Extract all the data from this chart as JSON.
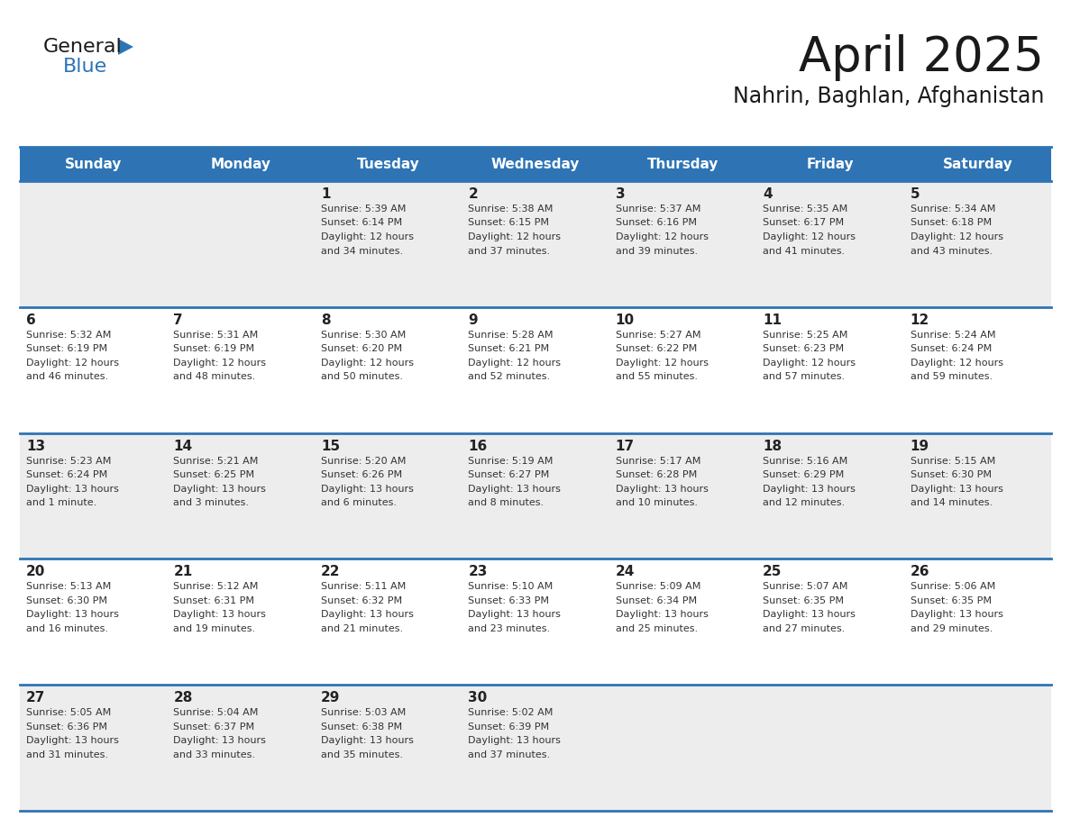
{
  "title": "April 2025",
  "subtitle": "Nahrin, Baghlan, Afghanistan",
  "header_color": "#2E74B5",
  "header_text_color": "#FFFFFF",
  "cell_bg_even": "#EDEDED",
  "cell_bg_odd": "#FFFFFF",
  "border_color": "#2E74B5",
  "text_color": "#333333",
  "day_num_color": "#222222",
  "day_headers": [
    "Sunday",
    "Monday",
    "Tuesday",
    "Wednesday",
    "Thursday",
    "Friday",
    "Saturday"
  ],
  "weeks": [
    [
      {
        "day": "",
        "sunrise": "",
        "sunset": "",
        "daylight": ""
      },
      {
        "day": "",
        "sunrise": "",
        "sunset": "",
        "daylight": ""
      },
      {
        "day": "1",
        "sunrise": "Sunrise: 5:39 AM",
        "sunset": "Sunset: 6:14 PM",
        "daylight": "Daylight: 12 hours\nand 34 minutes."
      },
      {
        "day": "2",
        "sunrise": "Sunrise: 5:38 AM",
        "sunset": "Sunset: 6:15 PM",
        "daylight": "Daylight: 12 hours\nand 37 minutes."
      },
      {
        "day": "3",
        "sunrise": "Sunrise: 5:37 AM",
        "sunset": "Sunset: 6:16 PM",
        "daylight": "Daylight: 12 hours\nand 39 minutes."
      },
      {
        "day": "4",
        "sunrise": "Sunrise: 5:35 AM",
        "sunset": "Sunset: 6:17 PM",
        "daylight": "Daylight: 12 hours\nand 41 minutes."
      },
      {
        "day": "5",
        "sunrise": "Sunrise: 5:34 AM",
        "sunset": "Sunset: 6:18 PM",
        "daylight": "Daylight: 12 hours\nand 43 minutes."
      }
    ],
    [
      {
        "day": "6",
        "sunrise": "Sunrise: 5:32 AM",
        "sunset": "Sunset: 6:19 PM",
        "daylight": "Daylight: 12 hours\nand 46 minutes."
      },
      {
        "day": "7",
        "sunrise": "Sunrise: 5:31 AM",
        "sunset": "Sunset: 6:19 PM",
        "daylight": "Daylight: 12 hours\nand 48 minutes."
      },
      {
        "day": "8",
        "sunrise": "Sunrise: 5:30 AM",
        "sunset": "Sunset: 6:20 PM",
        "daylight": "Daylight: 12 hours\nand 50 minutes."
      },
      {
        "day": "9",
        "sunrise": "Sunrise: 5:28 AM",
        "sunset": "Sunset: 6:21 PM",
        "daylight": "Daylight: 12 hours\nand 52 minutes."
      },
      {
        "day": "10",
        "sunrise": "Sunrise: 5:27 AM",
        "sunset": "Sunset: 6:22 PM",
        "daylight": "Daylight: 12 hours\nand 55 minutes."
      },
      {
        "day": "11",
        "sunrise": "Sunrise: 5:25 AM",
        "sunset": "Sunset: 6:23 PM",
        "daylight": "Daylight: 12 hours\nand 57 minutes."
      },
      {
        "day": "12",
        "sunrise": "Sunrise: 5:24 AM",
        "sunset": "Sunset: 6:24 PM",
        "daylight": "Daylight: 12 hours\nand 59 minutes."
      }
    ],
    [
      {
        "day": "13",
        "sunrise": "Sunrise: 5:23 AM",
        "sunset": "Sunset: 6:24 PM",
        "daylight": "Daylight: 13 hours\nand 1 minute."
      },
      {
        "day": "14",
        "sunrise": "Sunrise: 5:21 AM",
        "sunset": "Sunset: 6:25 PM",
        "daylight": "Daylight: 13 hours\nand 3 minutes."
      },
      {
        "day": "15",
        "sunrise": "Sunrise: 5:20 AM",
        "sunset": "Sunset: 6:26 PM",
        "daylight": "Daylight: 13 hours\nand 6 minutes."
      },
      {
        "day": "16",
        "sunrise": "Sunrise: 5:19 AM",
        "sunset": "Sunset: 6:27 PM",
        "daylight": "Daylight: 13 hours\nand 8 minutes."
      },
      {
        "day": "17",
        "sunrise": "Sunrise: 5:17 AM",
        "sunset": "Sunset: 6:28 PM",
        "daylight": "Daylight: 13 hours\nand 10 minutes."
      },
      {
        "day": "18",
        "sunrise": "Sunrise: 5:16 AM",
        "sunset": "Sunset: 6:29 PM",
        "daylight": "Daylight: 13 hours\nand 12 minutes."
      },
      {
        "day": "19",
        "sunrise": "Sunrise: 5:15 AM",
        "sunset": "Sunset: 6:30 PM",
        "daylight": "Daylight: 13 hours\nand 14 minutes."
      }
    ],
    [
      {
        "day": "20",
        "sunrise": "Sunrise: 5:13 AM",
        "sunset": "Sunset: 6:30 PM",
        "daylight": "Daylight: 13 hours\nand 16 minutes."
      },
      {
        "day": "21",
        "sunrise": "Sunrise: 5:12 AM",
        "sunset": "Sunset: 6:31 PM",
        "daylight": "Daylight: 13 hours\nand 19 minutes."
      },
      {
        "day": "22",
        "sunrise": "Sunrise: 5:11 AM",
        "sunset": "Sunset: 6:32 PM",
        "daylight": "Daylight: 13 hours\nand 21 minutes."
      },
      {
        "day": "23",
        "sunrise": "Sunrise: 5:10 AM",
        "sunset": "Sunset: 6:33 PM",
        "daylight": "Daylight: 13 hours\nand 23 minutes."
      },
      {
        "day": "24",
        "sunrise": "Sunrise: 5:09 AM",
        "sunset": "Sunset: 6:34 PM",
        "daylight": "Daylight: 13 hours\nand 25 minutes."
      },
      {
        "day": "25",
        "sunrise": "Sunrise: 5:07 AM",
        "sunset": "Sunset: 6:35 PM",
        "daylight": "Daylight: 13 hours\nand 27 minutes."
      },
      {
        "day": "26",
        "sunrise": "Sunrise: 5:06 AM",
        "sunset": "Sunset: 6:35 PM",
        "daylight": "Daylight: 13 hours\nand 29 minutes."
      }
    ],
    [
      {
        "day": "27",
        "sunrise": "Sunrise: 5:05 AM",
        "sunset": "Sunset: 6:36 PM",
        "daylight": "Daylight: 13 hours\nand 31 minutes."
      },
      {
        "day": "28",
        "sunrise": "Sunrise: 5:04 AM",
        "sunset": "Sunset: 6:37 PM",
        "daylight": "Daylight: 13 hours\nand 33 minutes."
      },
      {
        "day": "29",
        "sunrise": "Sunrise: 5:03 AM",
        "sunset": "Sunset: 6:38 PM",
        "daylight": "Daylight: 13 hours\nand 35 minutes."
      },
      {
        "day": "30",
        "sunrise": "Sunrise: 5:02 AM",
        "sunset": "Sunset: 6:39 PM",
        "daylight": "Daylight: 13 hours\nand 37 minutes."
      },
      {
        "day": "",
        "sunrise": "",
        "sunset": "",
        "daylight": ""
      },
      {
        "day": "",
        "sunrise": "",
        "sunset": "",
        "daylight": ""
      },
      {
        "day": "",
        "sunrise": "",
        "sunset": "",
        "daylight": ""
      }
    ]
  ],
  "logo_general_color": "#1a1a1a",
  "logo_blue_color": "#2E74B5",
  "logo_triangle_color": "#2E74B5"
}
